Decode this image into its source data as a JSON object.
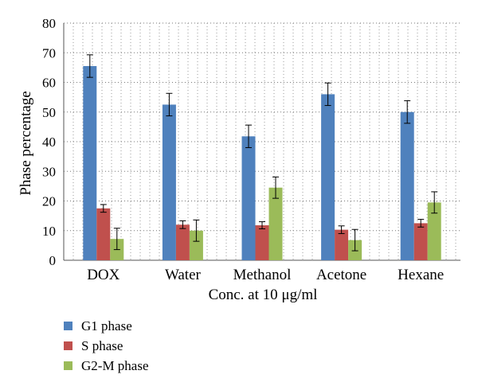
{
  "chart_data": {
    "type": "bar",
    "title": "",
    "xlabel": "Conc. at 10 μg/ml",
    "ylabel": "Phase percentage",
    "ylim": [
      0,
      80
    ],
    "yticks": [
      0,
      10,
      20,
      30,
      40,
      50,
      60,
      70,
      80
    ],
    "grid": "dotted",
    "legend_position": "bottom-left",
    "categories": [
      "DOX",
      "Water",
      "Methanol",
      "Acetone",
      "Hexane"
    ],
    "series": [
      {
        "name": "G1 phase",
        "color": "#4f81bd",
        "values": [
          65.5,
          52.5,
          41.8,
          56.0,
          50.0
        ],
        "errors": [
          3.8,
          3.8,
          3.8,
          3.8,
          3.8
        ]
      },
      {
        "name": "S phase",
        "color": "#c0504d",
        "values": [
          17.5,
          12.0,
          11.8,
          10.3,
          12.5
        ],
        "errors": [
          1.3,
          1.3,
          1.2,
          1.3,
          1.3
        ]
      },
      {
        "name": "G2-M phase",
        "color": "#9bbb59",
        "values": [
          7.2,
          10.0,
          24.5,
          6.8,
          19.5
        ],
        "errors": [
          3.6,
          3.6,
          3.6,
          3.6,
          3.6
        ]
      }
    ]
  }
}
